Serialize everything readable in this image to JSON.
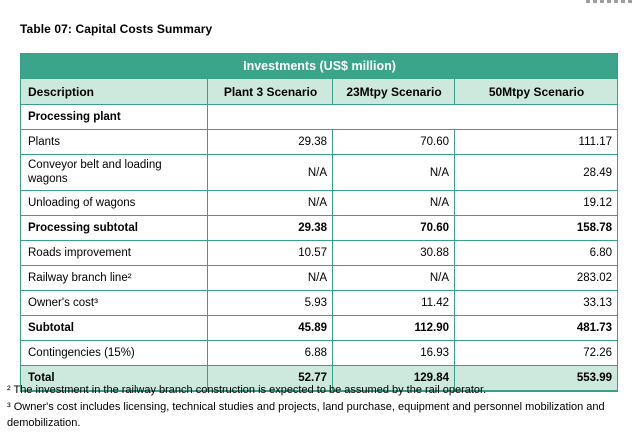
{
  "page": {
    "title": "Table 07: Capital Costs Summary"
  },
  "colors": {
    "band_background": "#3ba58c",
    "header_row_background": "#cde9dd",
    "border": "#37a086",
    "band_text": "#ffffff"
  },
  "table": {
    "band_title": "Investments (US$ million)",
    "headers": {
      "description": "Description",
      "plant3": "Plant 3 Scenario",
      "mtpy23": "23Mtpy Scenario",
      "mtpy50": "50Mtpy Scenario"
    },
    "rows": [
      {
        "description": "Processing plant",
        "values": [
          "",
          "",
          ""
        ]
      },
      {
        "description": "Plants",
        "values": [
          "29.38",
          "70.60",
          "111.17"
        ]
      },
      {
        "description": "Conveyor belt and loading wagons",
        "values": [
          "N/A",
          "N/A",
          "28.49"
        ]
      },
      {
        "description": "Unloading of wagons",
        "values": [
          "N/A",
          "N/A",
          "19.12"
        ]
      },
      {
        "description": "Processing subtotal",
        "values": [
          "29.38",
          "70.60",
          "158.78"
        ]
      },
      {
        "description": "Roads improvement",
        "values": [
          "10.57",
          "30.88",
          "6.80"
        ]
      },
      {
        "description": "Railway branch line²",
        "values": [
          "N/A",
          "N/A",
          "283.02"
        ]
      },
      {
        "description": "Owner's cost³",
        "values": [
          "5.93",
          "11.42",
          "33.13"
        ]
      },
      {
        "description": "Subtotal",
        "values": [
          "45.89",
          "112.90",
          "481.73"
        ]
      },
      {
        "description": "Contingencies (15%)",
        "values": [
          "6.88",
          "16.93",
          "72.26"
        ]
      },
      {
        "description": "Total",
        "values": [
          "52.77",
          "129.84",
          "553.99"
        ]
      }
    ]
  },
  "footnotes": [
    "² The investment in the railway branch construction is expected to be assumed by the rail operator.",
    "³ Owner's cost includes licensing, technical studies and projects, land purchase, equipment and personnel mobilization and demobilization."
  ]
}
